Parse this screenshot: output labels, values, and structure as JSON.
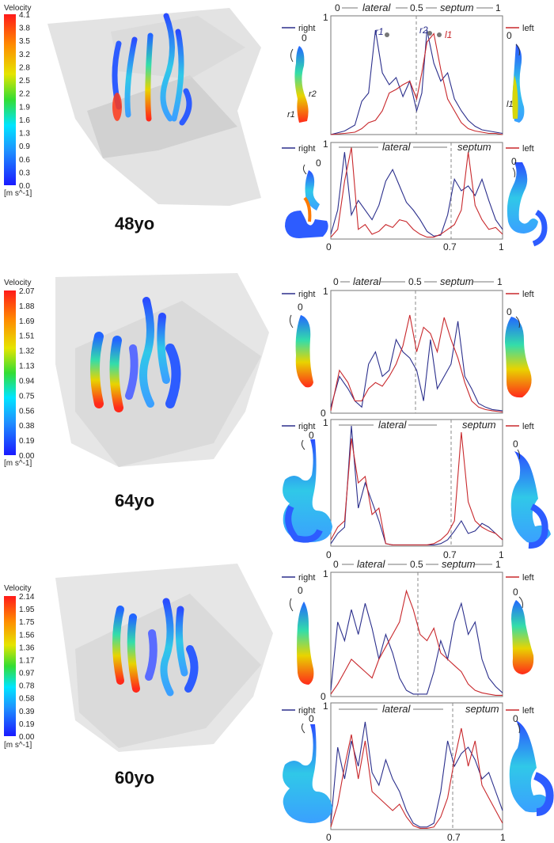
{
  "panels": [
    {
      "age_label": "48yo",
      "colorbar": {
        "title": "Velocity",
        "ticks": [
          "4.1",
          "3.8",
          "3.5",
          "3.2",
          "2.8",
          "2.5",
          "2.2",
          "1.9",
          "1.6",
          "1.3",
          "0.9",
          "0.6",
          "0.3",
          "0.0"
        ],
        "unit": "[m s^-1]"
      },
      "upper_plot": {
        "top_labels": [
          "0",
          "lateral",
          "0.5",
          "septum",
          "1"
        ],
        "y_max_label": "1",
        "legend_right": "right",
        "legend_left": "left",
        "start_marker_right": "0",
        "start_marker_left": "0",
        "point_labels": [
          "r1",
          "r2",
          "l1"
        ],
        "section_labels_right": [
          "r2",
          "r1"
        ],
        "section_labels_left": [
          "l1"
        ]
      },
      "lower_plot": {
        "top_labels": [
          "lateral",
          "septum"
        ],
        "bottom_labels": [
          "0",
          "0.7",
          "1"
        ],
        "y_max_label": "1",
        "legend_right": "right",
        "legend_left": "left",
        "start_marker_right": "0",
        "start_marker_left": "0"
      }
    },
    {
      "age_label": "64yo",
      "colorbar": {
        "title": "Velocity",
        "ticks": [
          "2.07",
          "1.88",
          "1.69",
          "1.51",
          "1.32",
          "1.13",
          "0.94",
          "0.75",
          "0.56",
          "0.38",
          "0.19",
          "0.00"
        ],
        "unit": "[m s^-1]"
      },
      "upper_plot": {
        "top_labels": [
          "0",
          "lateral",
          "0.5",
          "septum",
          "1"
        ],
        "y_max_label": "1",
        "y_min_label": "0",
        "legend_right": "right",
        "legend_left": "left",
        "start_marker_right": "0",
        "start_marker_left": "0"
      },
      "lower_plot": {
        "top_labels": [
          "lateral",
          "septum"
        ],
        "bottom_labels": [
          "0",
          "0.7",
          "1"
        ],
        "y_max_label": "1",
        "legend_right": "right",
        "legend_left": "left",
        "start_marker_right": "0",
        "start_marker_left": "0"
      }
    },
    {
      "age_label": "60yo",
      "colorbar": {
        "title": "Velocity",
        "ticks": [
          "2.14",
          "1.95",
          "1.75",
          "1.56",
          "1.36",
          "1.17",
          "0.97",
          "0.78",
          "0.58",
          "0.39",
          "0.19",
          "0.00"
        ],
        "unit": "[m s^-1]"
      },
      "upper_plot": {
        "top_labels": [
          "0",
          "lateral",
          "0.5",
          "septum",
          "1"
        ],
        "y_max_label": "1",
        "y_min_label": "0",
        "legend_right": "right",
        "legend_left": "left",
        "start_marker_right": "0",
        "start_marker_left": "0"
      },
      "lower_plot": {
        "top_labels": [
          "lateral",
          "septum"
        ],
        "bottom_labels": [
          "0",
          "0.7",
          "1"
        ],
        "y_max_label": "1",
        "legend_right": "right",
        "legend_left": "left",
        "start_marker_right": "0",
        "start_marker_left": "0"
      }
    }
  ],
  "colors": {
    "right_series": "#2b2f8c",
    "left_series": "#c8282c",
    "divider": "#888888"
  },
  "chart_data": [
    {
      "type": "line",
      "panel": "48yo upper",
      "xlim": [
        0,
        1
      ],
      "ylim": [
        0,
        1
      ],
      "annotations": [
        {
          "x": 0.5,
          "label": "0.5"
        }
      ],
      "series": [
        {
          "name": "right",
          "x": [
            0,
            0.08,
            0.14,
            0.18,
            0.22,
            0.26,
            0.3,
            0.34,
            0.38,
            0.42,
            0.46,
            0.5,
            0.53,
            0.56,
            0.6,
            0.64,
            0.68,
            0.72,
            0.76,
            0.8,
            0.84,
            0.88,
            0.92,
            0.96,
            1
          ],
          "y": [
            0.0,
            0.03,
            0.08,
            0.28,
            0.35,
            0.88,
            0.52,
            0.42,
            0.48,
            0.32,
            0.45,
            0.2,
            0.35,
            0.88,
            0.6,
            0.45,
            0.52,
            0.3,
            0.2,
            0.12,
            0.07,
            0.04,
            0.03,
            0.02,
            0.01
          ]
        },
        {
          "name": "left",
          "x": [
            0,
            0.08,
            0.14,
            0.18,
            0.22,
            0.26,
            0.3,
            0.34,
            0.38,
            0.42,
            0.46,
            0.5,
            0.53,
            0.56,
            0.6,
            0.64,
            0.68,
            0.72,
            0.76,
            0.8,
            0.84,
            0.88,
            0.92,
            0.96,
            1
          ],
          "y": [
            0.0,
            0.01,
            0.02,
            0.05,
            0.1,
            0.12,
            0.2,
            0.35,
            0.38,
            0.42,
            0.45,
            0.3,
            0.52,
            0.78,
            0.85,
            0.55,
            0.3,
            0.2,
            0.1,
            0.05,
            0.03,
            0.02,
            0.01,
            0.01,
            0.0
          ]
        }
      ]
    },
    {
      "type": "line",
      "panel": "48yo lower",
      "xlim": [
        0,
        1
      ],
      "ylim": [
        0,
        1
      ],
      "annotations": [
        {
          "x": 0.7,
          "label": "0.7"
        }
      ],
      "series": [
        {
          "name": "right",
          "x": [
            0,
            0.04,
            0.08,
            0.12,
            0.16,
            0.2,
            0.24,
            0.28,
            0.32,
            0.36,
            0.4,
            0.44,
            0.48,
            0.52,
            0.56,
            0.6,
            0.64,
            0.68,
            0.72,
            0.76,
            0.8,
            0.84,
            0.88,
            0.92,
            0.96,
            1
          ],
          "y": [
            0.05,
            0.3,
            0.9,
            0.25,
            0.4,
            0.3,
            0.2,
            0.35,
            0.6,
            0.72,
            0.55,
            0.38,
            0.3,
            0.2,
            0.08,
            0.03,
            0.04,
            0.25,
            0.62,
            0.5,
            0.55,
            0.45,
            0.62,
            0.4,
            0.2,
            0.1
          ]
        },
        {
          "name": "left",
          "x": [
            0,
            0.04,
            0.08,
            0.12,
            0.16,
            0.2,
            0.24,
            0.28,
            0.32,
            0.36,
            0.4,
            0.44,
            0.48,
            0.52,
            0.56,
            0.6,
            0.64,
            0.68,
            0.72,
            0.76,
            0.8,
            0.84,
            0.88,
            0.92,
            0.96,
            1
          ],
          "y": [
            0.02,
            0.1,
            0.6,
            0.95,
            0.1,
            0.15,
            0.05,
            0.08,
            0.15,
            0.12,
            0.2,
            0.18,
            0.1,
            0.05,
            0.02,
            0.02,
            0.05,
            0.1,
            0.15,
            0.3,
            0.9,
            0.35,
            0.2,
            0.1,
            0.12,
            0.05
          ]
        }
      ]
    },
    {
      "type": "line",
      "panel": "64yo upper",
      "xlim": [
        0,
        1
      ],
      "ylim": [
        0,
        1
      ],
      "annotations": [
        {
          "x": 0.5,
          "label": "0.5"
        }
      ],
      "series": [
        {
          "name": "right",
          "x": [
            0,
            0.05,
            0.1,
            0.14,
            0.18,
            0.22,
            0.26,
            0.3,
            0.34,
            0.38,
            0.42,
            0.46,
            0.5,
            0.54,
            0.58,
            0.62,
            0.66,
            0.7,
            0.74,
            0.78,
            0.82,
            0.86,
            0.9,
            0.94,
            1
          ],
          "y": [
            0.05,
            0.3,
            0.2,
            0.1,
            0.05,
            0.4,
            0.5,
            0.3,
            0.35,
            0.6,
            0.5,
            0.45,
            0.35,
            0.1,
            0.6,
            0.2,
            0.3,
            0.4,
            0.75,
            0.3,
            0.2,
            0.08,
            0.05,
            0.03,
            0.02
          ]
        },
        {
          "name": "left",
          "x": [
            0,
            0.05,
            0.1,
            0.14,
            0.18,
            0.22,
            0.26,
            0.3,
            0.34,
            0.38,
            0.42,
            0.46,
            0.5,
            0.54,
            0.58,
            0.62,
            0.66,
            0.7,
            0.74,
            0.78,
            0.82,
            0.86,
            0.9,
            0.94,
            1
          ],
          "y": [
            0.02,
            0.35,
            0.25,
            0.1,
            0.1,
            0.2,
            0.25,
            0.22,
            0.3,
            0.4,
            0.55,
            0.8,
            0.5,
            0.7,
            0.65,
            0.5,
            0.78,
            0.6,
            0.45,
            0.25,
            0.1,
            0.05,
            0.03,
            0.02,
            0.01
          ]
        }
      ]
    },
    {
      "type": "line",
      "panel": "64yo lower",
      "xlim": [
        0,
        1
      ],
      "ylim": [
        0,
        1
      ],
      "annotations": [
        {
          "x": 0.7,
          "label": "0.7"
        }
      ],
      "series": [
        {
          "name": "right",
          "x": [
            0,
            0.04,
            0.08,
            0.12,
            0.16,
            0.2,
            0.24,
            0.28,
            0.32,
            0.36,
            0.4,
            0.44,
            0.48,
            0.52,
            0.56,
            0.6,
            0.64,
            0.68,
            0.72,
            0.76,
            0.8,
            0.84,
            0.88,
            0.92,
            0.96,
            1
          ],
          "y": [
            0.02,
            0.1,
            0.15,
            0.95,
            0.3,
            0.5,
            0.35,
            0.2,
            0.02,
            0.01,
            0.01,
            0.01,
            0.01,
            0.01,
            0.01,
            0.01,
            0.02,
            0.05,
            0.12,
            0.2,
            0.1,
            0.12,
            0.18,
            0.15,
            0.1,
            0.05
          ]
        },
        {
          "name": "left",
          "x": [
            0,
            0.04,
            0.08,
            0.12,
            0.16,
            0.2,
            0.24,
            0.28,
            0.32,
            0.36,
            0.4,
            0.44,
            0.48,
            0.52,
            0.56,
            0.6,
            0.64,
            0.68,
            0.72,
            0.76,
            0.8,
            0.84,
            0.88,
            0.92,
            0.96,
            1
          ],
          "y": [
            0.05,
            0.15,
            0.2,
            0.85,
            0.5,
            0.55,
            0.25,
            0.3,
            0.02,
            0.01,
            0.01,
            0.01,
            0.01,
            0.01,
            0.01,
            0.02,
            0.05,
            0.1,
            0.2,
            0.9,
            0.35,
            0.2,
            0.15,
            0.12,
            0.1,
            0.05
          ]
        }
      ]
    },
    {
      "type": "line",
      "panel": "60yo upper",
      "xlim": [
        0,
        1
      ],
      "ylim": [
        0,
        1
      ],
      "annotations": [
        {
          "x": 0.5,
          "label": "0.5"
        }
      ],
      "series": [
        {
          "name": "right",
          "x": [
            0,
            0.04,
            0.08,
            0.12,
            0.16,
            0.2,
            0.24,
            0.28,
            0.32,
            0.36,
            0.4,
            0.44,
            0.48,
            0.52,
            0.56,
            0.6,
            0.64,
            0.68,
            0.72,
            0.76,
            0.8,
            0.84,
            0.88,
            0.92,
            0.96,
            1
          ],
          "y": [
            0.05,
            0.6,
            0.45,
            0.7,
            0.5,
            0.75,
            0.55,
            0.3,
            0.5,
            0.35,
            0.15,
            0.05,
            0.02,
            0.02,
            0.02,
            0.2,
            0.45,
            0.3,
            0.6,
            0.75,
            0.5,
            0.6,
            0.3,
            0.15,
            0.08,
            0.03
          ]
        },
        {
          "name": "left",
          "x": [
            0,
            0.04,
            0.08,
            0.12,
            0.16,
            0.2,
            0.24,
            0.28,
            0.32,
            0.36,
            0.4,
            0.44,
            0.48,
            0.52,
            0.56,
            0.6,
            0.64,
            0.68,
            0.72,
            0.76,
            0.8,
            0.84,
            0.88,
            0.92,
            0.96,
            1
          ],
          "y": [
            0.02,
            0.1,
            0.2,
            0.3,
            0.25,
            0.2,
            0.15,
            0.3,
            0.4,
            0.5,
            0.6,
            0.85,
            0.7,
            0.5,
            0.45,
            0.55,
            0.35,
            0.3,
            0.25,
            0.2,
            0.1,
            0.05,
            0.03,
            0.02,
            0.01,
            0.01
          ]
        }
      ]
    },
    {
      "type": "line",
      "panel": "60yo lower",
      "xlim": [
        0,
        1
      ],
      "ylim": [
        0,
        1
      ],
      "annotations": [
        {
          "x": 0.7,
          "label": "0.7"
        }
      ],
      "series": [
        {
          "name": "right",
          "x": [
            0,
            0.04,
            0.08,
            0.12,
            0.16,
            0.2,
            0.24,
            0.28,
            0.32,
            0.36,
            0.4,
            0.44,
            0.48,
            0.52,
            0.56,
            0.6,
            0.64,
            0.68,
            0.72,
            0.76,
            0.8,
            0.84,
            0.88,
            0.92,
            0.96,
            1
          ],
          "y": [
            0.05,
            0.65,
            0.4,
            0.7,
            0.5,
            0.85,
            0.45,
            0.35,
            0.55,
            0.4,
            0.3,
            0.15,
            0.05,
            0.02,
            0.02,
            0.05,
            0.3,
            0.7,
            0.5,
            0.6,
            0.65,
            0.55,
            0.4,
            0.45,
            0.3,
            0.15
          ]
        },
        {
          "name": "left",
          "x": [
            0,
            0.04,
            0.08,
            0.12,
            0.16,
            0.2,
            0.24,
            0.28,
            0.32,
            0.36,
            0.4,
            0.44,
            0.48,
            0.52,
            0.56,
            0.6,
            0.64,
            0.68,
            0.72,
            0.76,
            0.8,
            0.84,
            0.88,
            0.92,
            0.96,
            1
          ],
          "y": [
            0.02,
            0.2,
            0.5,
            0.75,
            0.4,
            0.7,
            0.3,
            0.25,
            0.2,
            0.15,
            0.2,
            0.1,
            0.03,
            0.01,
            0.01,
            0.02,
            0.1,
            0.25,
            0.55,
            0.8,
            0.5,
            0.7,
            0.35,
            0.25,
            0.15,
            0.05
          ]
        }
      ]
    }
  ]
}
